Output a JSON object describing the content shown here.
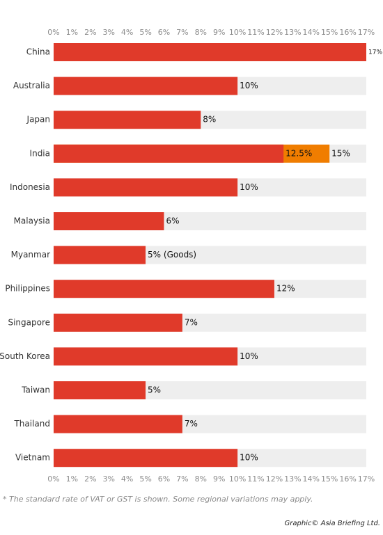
{
  "chart_data": {
    "type": "hbar",
    "categories": [
      "China",
      "Australia",
      "Japan",
      "India",
      "Indonesia",
      "Malaysia",
      "Myanmar",
      "Philippines",
      "Singapore",
      "South Korea",
      "Taiwan",
      "Thailand",
      "Vietnam"
    ],
    "series": [
      {
        "color": "#e03a2a",
        "values": [
          17,
          10,
          8,
          12.5,
          10,
          6,
          5,
          12,
          7,
          10,
          5,
          7,
          10
        ],
        "value_labels": [
          "17%",
          "10%",
          "8%",
          "12.5%",
          "10%",
          "6%",
          "5% (Goods)",
          "12%",
          "7%",
          "10%",
          "5%",
          "7%",
          "10%"
        ]
      },
      {
        "color": "#f07d00",
        "values": [
          null,
          null,
          null,
          15,
          null,
          null,
          null,
          null,
          null,
          null,
          null,
          null,
          null
        ],
        "value_labels": [
          null,
          null,
          null,
          "15%",
          null,
          null,
          null,
          null,
          null,
          null,
          null,
          null,
          null
        ]
      }
    ],
    "track_color": "#eeeeee",
    "xlim": [
      0,
      17
    ],
    "xticks": [
      {
        "value": 0,
        "label": "0%"
      },
      {
        "value": 1,
        "label": "1%"
      },
      {
        "value": 2,
        "label": "2%"
      },
      {
        "value": 3,
        "label": "3%"
      },
      {
        "value": 4,
        "label": "4%"
      },
      {
        "value": 5,
        "label": "5%"
      },
      {
        "value": 6,
        "label": "6%"
      },
      {
        "value": 7,
        "label": "7%"
      },
      {
        "value": 8,
        "label": "8%"
      },
      {
        "value": 9,
        "label": "9%"
      },
      {
        "value": 10,
        "label": "10%"
      },
      {
        "value": 11,
        "label": "11%"
      },
      {
        "value": 12,
        "label": "12%"
      },
      {
        "value": 13,
        "label": "13%"
      },
      {
        "value": 14,
        "label": "14%"
      },
      {
        "value": 15,
        "label": "15%"
      },
      {
        "value": 16,
        "label": "16%"
      },
      {
        "value": 17,
        "label": "17%"
      }
    ],
    "footnote": "* The standard rate of VAT or GST is shown. Some regional variations may apply.",
    "credit": "Graphic© Asia Briefing Ltd."
  }
}
